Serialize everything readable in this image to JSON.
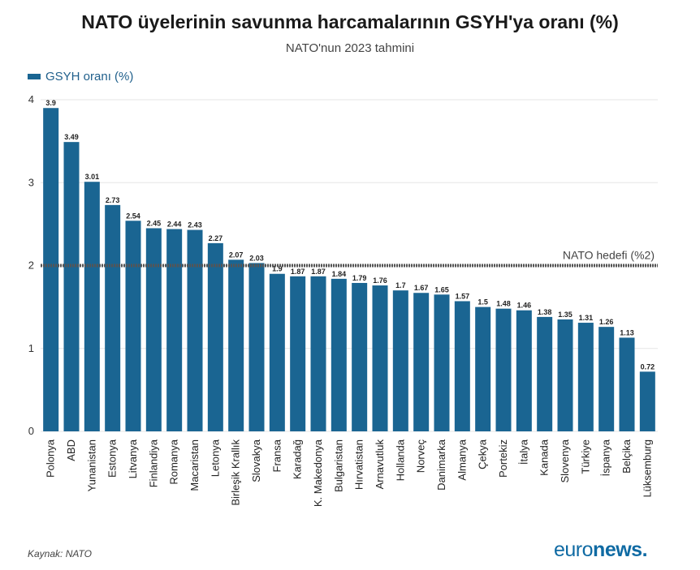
{
  "title": "NATO üyelerinin savunma harcamalarının GSYH'ya oranı (%)",
  "subtitle": "NATO'nun 2023 tahmini",
  "legend": {
    "label": "GSYH oranı (%)"
  },
  "source": "Kaynak: NATO",
  "brand": {
    "part1": "euro",
    "part2": "news",
    "dot": "."
  },
  "colors": {
    "bar": "#1a6592",
    "goal_line": "#555555",
    "grid": "#e6e6e6",
    "brand": "#0f6aa3"
  },
  "chart_data": {
    "type": "bar",
    "title": "NATO üyelerinin savunma harcamalarının GSYH'ya oranı (%)",
    "subtitle": "NATO'nun 2023 tahmini",
    "categories": [
      "Polonya",
      "ABD",
      "Yunanistan",
      "Estonya",
      "Litvanya",
      "Finlandiya",
      "Romanya",
      "Macaristan",
      "Letonya",
      "Birleşik Krallık",
      "Slovakya",
      "Fransa",
      "Karadağ",
      "K. Makedonya",
      "Bulgaristan",
      "Hırvatistan",
      "Arnavutluk",
      "Hollanda",
      "Norveç",
      "Danimarka",
      "Almanya",
      "Çekya",
      "Portekiz",
      "İtalya",
      "Kanada",
      "Slovenya",
      "Türkiye",
      "İspanya",
      "Belçika",
      "Lüksemburg"
    ],
    "series": [
      {
        "name": "GSYH oranı (%)",
        "values": [
          3.9,
          3.49,
          3.01,
          2.73,
          2.54,
          2.45,
          2.44,
          2.43,
          2.27,
          2.07,
          2.03,
          1.9,
          1.87,
          1.87,
          1.84,
          1.79,
          1.76,
          1.7,
          1.67,
          1.65,
          1.57,
          1.5,
          1.48,
          1.46,
          1.38,
          1.35,
          1.31,
          1.26,
          1.13,
          0.72
        ]
      }
    ],
    "value_labels": [
      "3.9",
      "3.49",
      "3.01",
      "2.73",
      "2.54",
      "2.45",
      "2.44",
      "2.43",
      "2.27",
      "2.07",
      "2.03",
      "1.9",
      "1.87",
      "1.87",
      "1.84",
      "1.79",
      "1.76",
      "1.7",
      "1.67",
      "1.65",
      "1.57",
      "1.5",
      "1.48",
      "1.46",
      "1.38",
      "1.35",
      "1.31",
      "1.26",
      "1.13",
      "0.72"
    ],
    "ylim": [
      0,
      4
    ],
    "yticks": [
      "0",
      "1",
      "2",
      "3",
      "4"
    ],
    "grid": true,
    "legend_position": "top-left",
    "reference_line": {
      "value": 2,
      "label": "NATO hedefi (%2)"
    }
  }
}
